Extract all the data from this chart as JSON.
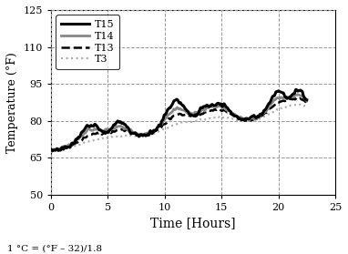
{
  "xlabel": "Time [Hours]",
  "ylabel": "Temperature (°F)",
  "footnote": "1 °C = (°F – 32)/1.8",
  "xlim": [
    0,
    25
  ],
  "ylim": [
    50,
    125
  ],
  "yticks": [
    50,
    65,
    80,
    95,
    110,
    125
  ],
  "xticks": [
    0,
    5,
    10,
    15,
    20,
    25
  ],
  "series": [
    {
      "label": "T15",
      "color": "black",
      "lw": 2.2,
      "ls": "solid",
      "zorder": 5
    },
    {
      "label": "T14",
      "color": "#888888",
      "lw": 2.0,
      "ls": "solid",
      "zorder": 4
    },
    {
      "label": "T13",
      "color": "black",
      "lw": 1.8,
      "ls": "dashed",
      "zorder": 3
    },
    {
      "label": "T3",
      "color": "#aaaaaa",
      "lw": 1.5,
      "ls": "dotted",
      "zorder": 2
    }
  ],
  "figsize": [
    3.82,
    2.79
  ],
  "dpi": 100
}
